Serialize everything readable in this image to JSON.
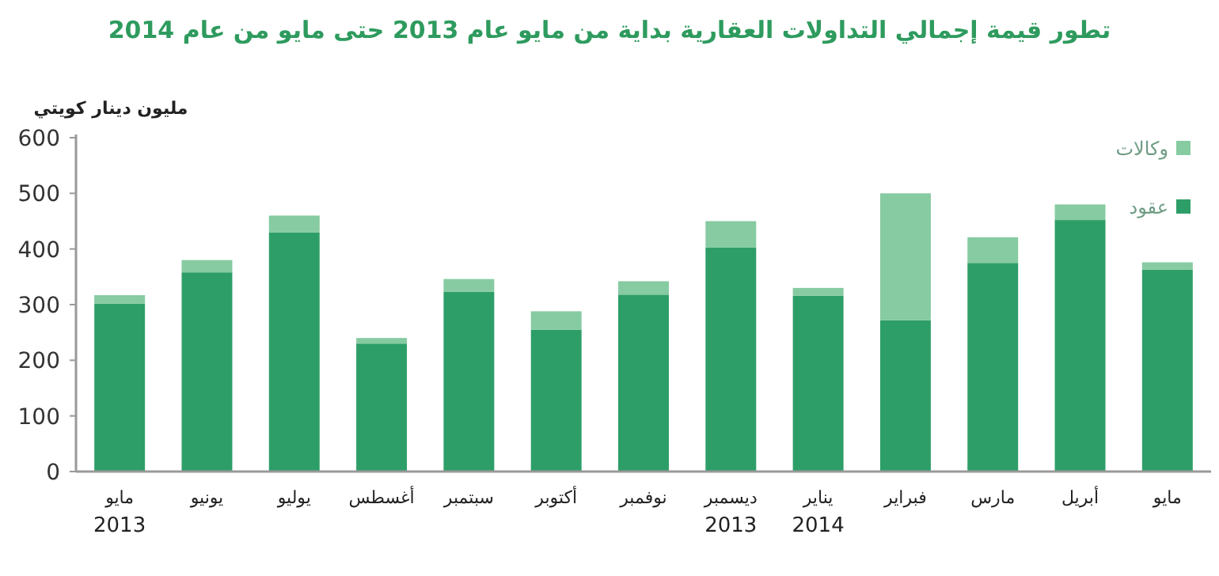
{
  "chart_data": {
    "type": "bar",
    "title": "تطور قيمة إجمالي التداولات العقارية بداية من مايو عام 2013 حتى مايو من عام  2014",
    "ylabel": "مليون دينار كويتي",
    "categories": [
      "مايو\n2013",
      "يونيو",
      "يوليو",
      "أغسطس",
      "سبتمبر",
      "أكتوبر",
      "نوفمبر",
      "ديسمبر\n2013",
      "يناير\n2014",
      "فبراير",
      "مارس",
      "أبريل",
      "مايو"
    ],
    "stacked": true,
    "series": [
      {
        "name": "عقود",
        "color": "#2e9e68",
        "values": [
          302,
          358,
          430,
          230,
          323,
          255,
          318,
          403,
          316,
          272,
          375,
          452,
          363
        ]
      },
      {
        "name": "وكالات",
        "color": "#86cba1",
        "values": [
          15,
          22,
          30,
          10,
          23,
          33,
          24,
          47,
          14,
          228,
          46,
          28,
          13
        ]
      }
    ],
    "ylim": [
      0,
      600
    ],
    "yticks": [
      0,
      100,
      200,
      300,
      400,
      500,
      600
    ],
    "grid": false,
    "legend": "top right"
  }
}
